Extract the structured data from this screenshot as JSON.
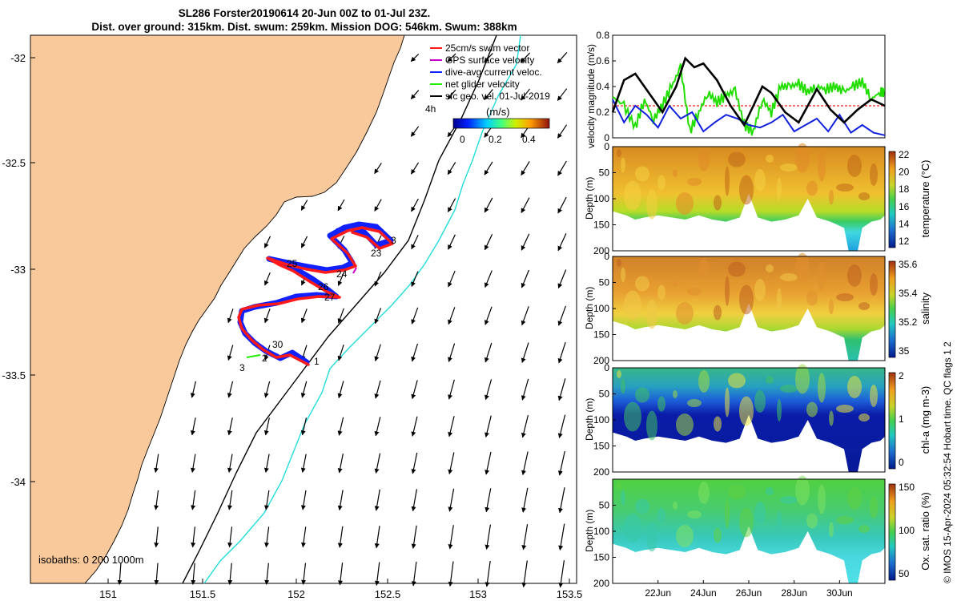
{
  "header": {
    "title_line1": "SL286 Forster20190614 20-Jun 00Z to 01-Jul 23Z.",
    "title_line2": "Dist. over ground: 315km. Dist. swum: 259km. Mission DOG: 546km. Swum: 388km"
  },
  "credit": "© IMOS 15-Apr-2024 05:32:54 Hobart time. QC flags 1  2",
  "colors": {
    "land": "#f9c89b",
    "ocean": "#ffffff",
    "track_swim": "#ff1a1a",
    "track_current": "#1020ff",
    "gps": "#cc00cc",
    "net_glider": "#22ee00",
    "current_arrows": "#000000",
    "isobath_200": "#000000",
    "isobath_1000": "#22dddd",
    "speed_line_black": "#000000",
    "speed_line_green": "#22dd00",
    "speed_line_blue": "#1020dd",
    "speed_line_red": "#ff2020"
  },
  "map": {
    "x_ticks": [
      "151",
      "151.5",
      "152",
      "152.5",
      "153",
      "153.5"
    ],
    "y_ticks": [
      "-32",
      "-32.5",
      "-33",
      "-33.5",
      "-34"
    ],
    "legend": [
      {
        "label": "25cm/s swim vector",
        "color": "#ff1a1a"
      },
      {
        "label": "GPS surface velocity",
        "color": "#cc00cc"
      },
      {
        "label": "dive-avg current veloc.",
        "color": "#1020ff"
      },
      {
        "label": "net glider velocity",
        "color": "#22ee00"
      },
      {
        "label": "sfc geo. vel. 01-Jul-2019",
        "color": "#000000"
      }
    ],
    "colorbar_label": "(m/s)",
    "colorbar_ticks": [
      "0",
      "0.2",
      "0.4"
    ],
    "colorbar_side_label": "4h",
    "isobaths_label": "isobaths: 0   200  1000m",
    "day_labels": [
      "1",
      "2",
      "3",
      "23",
      "24",
      "25",
      "26",
      "27",
      "28",
      "30",
      "3"
    ]
  },
  "chart_data": [
    {
      "type": "line",
      "title": "velocity magnitude",
      "ylabel": "velocity magnitude (m/s)",
      "ylim": [
        0,
        0.8
      ],
      "y_ticks": [
        "0",
        "0.2",
        "0.4",
        "0.6",
        "0.8"
      ],
      "x_domain_days": [
        20,
        32
      ],
      "series": [
        {
          "name": "net glider velocity",
          "color": "#22dd00",
          "x": [
            20.0,
            20.5,
            21.0,
            21.4,
            21.8,
            22.2,
            22.6,
            23.0,
            23.4,
            23.8,
            24.2,
            24.6,
            25.0,
            25.4,
            25.8,
            26.2,
            26.6,
            27.0,
            27.4,
            27.8,
            28.2,
            28.6,
            29.0,
            29.4,
            29.8,
            30.2,
            30.6,
            31.0,
            31.4,
            31.8,
            32.0
          ],
          "y": [
            0.32,
            0.25,
            0.08,
            0.3,
            0.14,
            0.26,
            0.4,
            0.55,
            0.05,
            0.2,
            0.35,
            0.28,
            0.33,
            0.37,
            0.1,
            0.05,
            0.3,
            0.2,
            0.4,
            0.4,
            0.42,
            0.36,
            0.4,
            0.38,
            0.4,
            0.36,
            0.4,
            0.44,
            0.3,
            0.36,
            0.35
          ]
        },
        {
          "name": "sfc geo. vel.",
          "color": "#000000",
          "x": [
            20.0,
            20.5,
            21.0,
            21.6,
            22.2,
            22.8,
            23.2,
            23.6,
            24.0,
            24.6,
            25.2,
            25.8,
            26.2,
            26.6,
            27.0,
            27.6,
            28.2,
            28.6,
            29.0,
            29.6,
            30.2,
            30.8,
            31.4,
            32.0
          ],
          "y": [
            0.2,
            0.45,
            0.5,
            0.35,
            0.2,
            0.4,
            0.62,
            0.55,
            0.58,
            0.45,
            0.25,
            0.1,
            0.25,
            0.4,
            0.35,
            0.2,
            0.12,
            0.25,
            0.38,
            0.22,
            0.12,
            0.22,
            0.3,
            0.25
          ]
        },
        {
          "name": "dive-avg current veloc.",
          "color": "#1020dd",
          "x": [
            20.0,
            20.5,
            21.0,
            21.5,
            22.0,
            22.5,
            23.0,
            23.5,
            24.0,
            24.5,
            25.0,
            25.5,
            26.0,
            26.5,
            27.0,
            27.5,
            28.0,
            28.5,
            29.0,
            29.5,
            30.0,
            30.5,
            31.0,
            31.5,
            32.0
          ],
          "y": [
            0.3,
            0.12,
            0.25,
            0.18,
            0.08,
            0.25,
            0.15,
            0.2,
            0.05,
            0.12,
            0.18,
            0.15,
            0.1,
            0.08,
            0.12,
            0.18,
            0.05,
            0.1,
            0.15,
            0.05,
            0.18,
            0.04,
            0.1,
            0.04,
            0.02
          ]
        },
        {
          "name": "25cm/s swim vector",
          "color": "#ff2020",
          "x": [
            20.0,
            32.0
          ],
          "y": [
            0.25,
            0.25
          ]
        }
      ]
    },
    {
      "type": "heatmap",
      "title": "temperature",
      "ylabel": "Depth (m)",
      "colorbar_label": "temperature (°C)",
      "colorbar_ticks": [
        "12",
        "14",
        "16",
        "18",
        "20",
        "22"
      ],
      "y_ticks": [
        "0",
        "50",
        "100",
        "150",
        "200"
      ]
    },
    {
      "type": "heatmap",
      "title": "salinity",
      "ylabel": "Depth (m)",
      "colorbar_label": "salinity",
      "colorbar_ticks": [
        "35",
        "35.2",
        "35.4",
        "35.6"
      ],
      "y_ticks": [
        "0",
        "50",
        "100",
        "150",
        "200"
      ]
    },
    {
      "type": "heatmap",
      "title": "chl-a",
      "ylabel": "Depth (m)",
      "colorbar_label": "chl-a (mg m-3)",
      "colorbar_ticks": [
        "0",
        "1",
        "2"
      ],
      "y_ticks": [
        "0",
        "50",
        "100",
        "150",
        "200"
      ]
    },
    {
      "type": "heatmap",
      "title": "oxygen saturation",
      "ylabel": "Depth (m)",
      "colorbar_label": "Ox. sat. ratio (%)",
      "colorbar_ticks": [
        "50",
        "100",
        "150"
      ],
      "y_ticks": [
        "50",
        "100",
        "150",
        "200"
      ],
      "x_tick_labels": [
        "22Jun",
        "24Jun",
        "26Jun",
        "28Jun",
        "30Jun"
      ]
    }
  ]
}
